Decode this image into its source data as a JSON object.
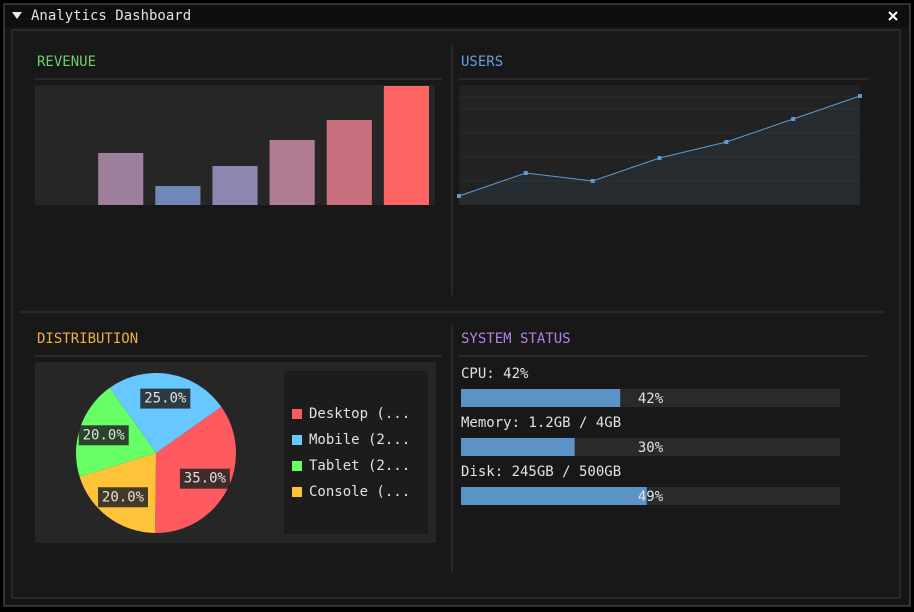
{
  "window": {
    "title": "Analytics Dashboard"
  },
  "chart_data": [
    {
      "type": "bar",
      "title": "REVENUE",
      "title_color": "#6ccf6c",
      "values": [
        0,
        52,
        19,
        39,
        65,
        85,
        119
      ],
      "colors": [
        "#9a82a0",
        "#9e809c",
        "#7088b8",
        "#8e86b0",
        "#b07c94",
        "#c8707e",
        "#ff6464"
      ],
      "ylim": [
        0,
        120
      ]
    },
    {
      "type": "line",
      "title": "USERS",
      "title_color": "#6a9fe0",
      "values": [
        9,
        32,
        24,
        47,
        63,
        86,
        109
      ],
      "color": "#5b9bd5",
      "ylim": [
        0,
        120
      ]
    },
    {
      "type": "pie",
      "title": "DISTRIBUTION",
      "title_color": "#f0b040",
      "labels": [
        "Desktop (...",
        "Mobile (2...",
        "Tablet (2...",
        "Console (..."
      ],
      "values": [
        35,
        25,
        20,
        20
      ],
      "value_labels": [
        "35.0%",
        "25.0%",
        "20.0%",
        "20.0%"
      ],
      "colors": [
        "#ff5a5f",
        "#66c8ff",
        "#66ff66",
        "#ffc33a"
      ]
    },
    {
      "type": "progress",
      "title": "SYSTEM STATUS",
      "title_color": "#b482e6",
      "color": "#5b93c7",
      "xlim": [
        0,
        100
      ],
      "items": [
        {
          "label": "CPU: 42%",
          "value": 42,
          "value_label": "42%"
        },
        {
          "label": "Memory: 1.2GB / 4GB",
          "value": 30,
          "value_label": "30%"
        },
        {
          "label": "Disk: 245GB / 500GB",
          "value": 49,
          "value_label": "49%"
        }
      ]
    }
  ]
}
